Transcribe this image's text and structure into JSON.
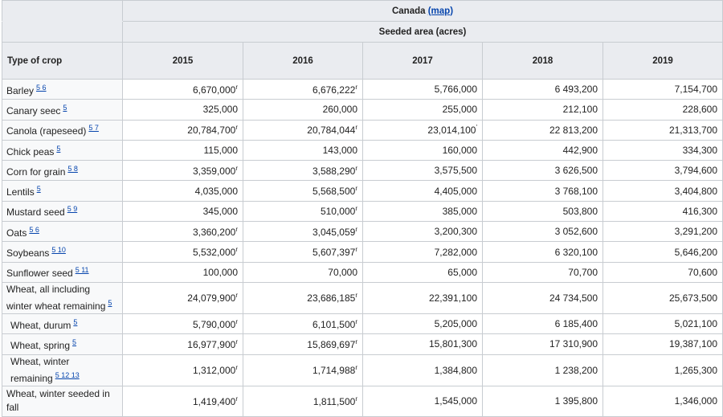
{
  "header": {
    "country": "Canada",
    "map_link": "(map)",
    "measure": "Seeded area (acres)",
    "crop_col": "Type of crop",
    "years": [
      "2015",
      "2016",
      "2017",
      "2018",
      "2019"
    ]
  },
  "rows": [
    {
      "crop": "Barley",
      "refs": "5 6",
      "values": [
        "6,670,000",
        "6,676,222",
        "5,766,000",
        "6 493,200",
        "7,154,700"
      ],
      "marks": [
        "r",
        "r",
        "",
        "",
        ""
      ]
    },
    {
      "crop": "Canary seec",
      "refs": "5",
      "values": [
        "325,000",
        "260,000",
        "255,000",
        "212,100",
        "228,600"
      ],
      "marks": [
        "",
        "",
        "",
        "",
        ""
      ]
    },
    {
      "crop": "Canola (rapeseed)",
      "refs": "5 7",
      "values": [
        "20,784,700",
        "20,784,044",
        "23,014,100",
        "22 813,200",
        "21,313,700"
      ],
      "marks": [
        "r",
        "r",
        "'",
        "",
        ""
      ]
    },
    {
      "crop": "Chick peas",
      "refs": "5",
      "values": [
        "115,000",
        "143,000",
        "160,000",
        "442,900",
        "334,300"
      ],
      "marks": [
        "",
        "",
        "",
        "",
        ""
      ]
    },
    {
      "crop": "Corn for grain",
      "refs": "5 8",
      "values": [
        "3,359,000",
        "3,588,290",
        "3,575,500",
        "3 626,500",
        "3,794,600"
      ],
      "marks": [
        "r",
        "r",
        "",
        "",
        ""
      ]
    },
    {
      "crop": "Lentils",
      "refs": "5",
      "values": [
        "4,035,000",
        "5,568,500",
        "4,405,000",
        "3 768,100",
        "3,404,800"
      ],
      "marks": [
        "",
        "r",
        "",
        "",
        ""
      ]
    },
    {
      "crop": "Mustard seed",
      "refs": "5 9",
      "values": [
        "345,000",
        "510,000",
        "385,000",
        "503,800",
        "416,300"
      ],
      "marks": [
        "",
        "r",
        "",
        "",
        ""
      ]
    },
    {
      "crop": "Oats",
      "refs": "5 6",
      "values": [
        "3,360,200",
        "3,045,059",
        "3,200,300",
        "3 052,600",
        "3,291,200"
      ],
      "marks": [
        "r",
        "r",
        "",
        "",
        ""
      ]
    },
    {
      "crop": "Soybeans",
      "refs": "5 10",
      "values": [
        "5,532,000",
        "5,607,397",
        "7,282,000",
        "6 320,100",
        "5,646,200"
      ],
      "marks": [
        "r",
        "r",
        "",
        "",
        ""
      ]
    },
    {
      "crop": "Sunflower seed",
      "refs": "5 11",
      "values": [
        "100,000",
        "70,000",
        "65,000",
        "70,700",
        "70,600"
      ],
      "marks": [
        "",
        "",
        "",
        "",
        ""
      ]
    },
    {
      "crop": "Wheat, all including winter wheat remaining",
      "refs": "5",
      "values": [
        "24,079,900",
        "23,686,185",
        "22,391,100",
        "24 734,500",
        "25,673,500"
      ],
      "marks": [
        "r",
        "r",
        "",
        "",
        ""
      ],
      "tall": true
    },
    {
      "crop": "Wheat, durum",
      "refs": "5",
      "values": [
        "5,790,000",
        "6,101,500",
        "5,205,000",
        "6 185,400",
        "5,021,100"
      ],
      "marks": [
        "r",
        "r",
        "",
        "",
        ""
      ],
      "indent": true
    },
    {
      "crop": "Wheat, spring",
      "refs": "5",
      "values": [
        "16,977,900",
        "15,869,697",
        "15,801,300",
        "17 310,900",
        "19,387,100"
      ],
      "marks": [
        "r",
        "r",
        "",
        "",
        ""
      ],
      "indent": true
    },
    {
      "crop": "Wheat, winter remaining",
      "refs": "5 12 13",
      "values": [
        "1,312,000",
        "1,714,988",
        "1,384,800",
        "1 238,200",
        "1,265,300"
      ],
      "marks": [
        "r",
        "r",
        "",
        "",
        ""
      ],
      "indent": true,
      "tall": true
    },
    {
      "crop": "Wheat, winter seeded in fall",
      "refs": "",
      "values": [
        "1,419,400",
        "1,811,500",
        "1,545,000",
        "1 395,800",
        "1,346,000"
      ],
      "marks": [
        "r",
        "r",
        "",
        "",
        ""
      ],
      "tall": true
    }
  ]
}
